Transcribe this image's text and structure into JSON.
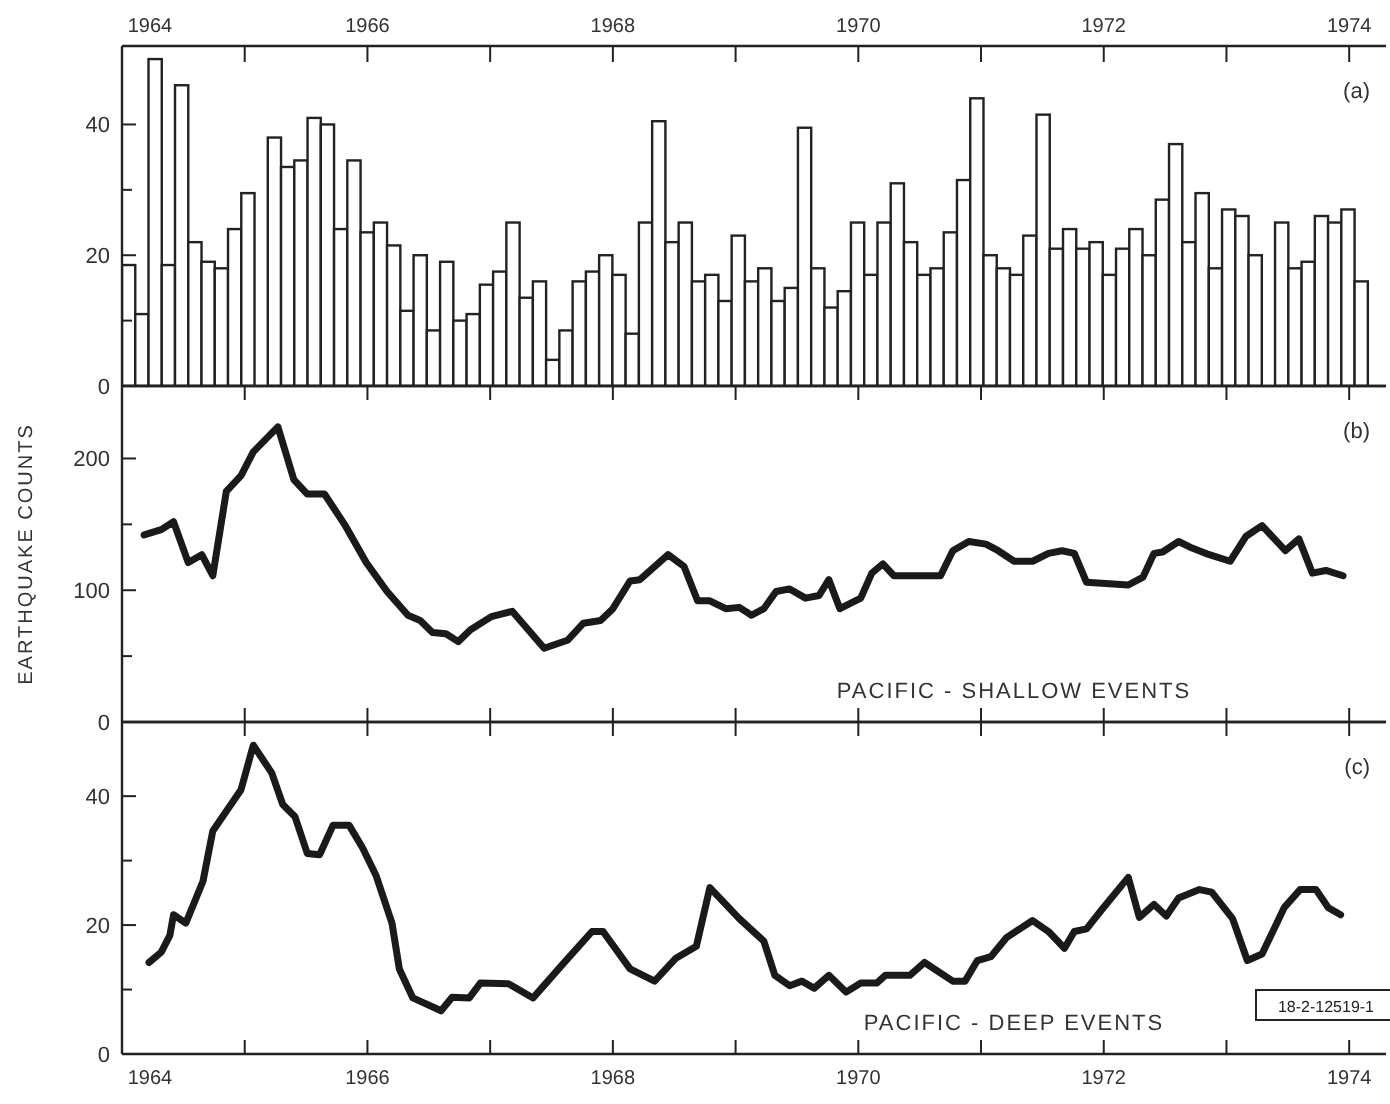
{
  "chart_data": [
    {
      "type": "histogram",
      "color": "#222222",
      "bins": [
        1964,
        1964.108,
        1964.216,
        1964.324,
        1964.432,
        1964.54,
        1964.648,
        1964.756,
        1964.864,
        1964.972,
        1965.08,
        1965.188,
        1965.296,
        1965.404,
        1965.512,
        1965.62,
        1965.728,
        1965.836,
        1965.944,
        1966.052,
        1966.16,
        1966.268,
        1966.376,
        1966.484,
        1966.592,
        1966.7,
        1966.808,
        1966.916,
        1967.024,
        1967.132,
        1967.24,
        1967.348,
        1967.456,
        1967.564,
        1967.672,
        1967.78,
        1967.888,
        1967.996,
        1968.104,
        1968.212,
        1968.32,
        1968.428,
        1968.536,
        1968.644,
        1968.752,
        1968.86,
        1968.968,
        1969.076,
        1969.184,
        1969.292,
        1969.4,
        1969.508,
        1969.616,
        1969.724,
        1969.832,
        1969.94,
        1970.048,
        1970.156,
        1970.264,
        1970.372,
        1970.48,
        1970.588,
        1970.696,
        1970.804,
        1970.912,
        1971.02,
        1971.128,
        1971.236,
        1971.344,
        1971.452,
        1971.56,
        1971.668,
        1971.776,
        1971.884,
        1971.992,
        1972.1,
        1972.208,
        1972.316,
        1972.424,
        1972.532,
        1972.64,
        1972.748,
        1972.856,
        1972.964,
        1973.072,
        1973.18,
        1973.288,
        1973.396,
        1973.504,
        1973.612,
        1973.72,
        1973.828,
        1973.936,
        1974.044,
        1974.152
      ],
      "values": [
        18.5,
        11,
        50,
        18.5,
        46,
        22,
        19,
        18,
        24,
        29.5,
        null,
        38,
        33.5,
        34.5,
        41,
        40,
        24,
        34.5,
        23.5,
        25,
        21.5,
        11.5,
        20,
        8.5,
        19,
        10,
        11,
        15.5,
        17.5,
        25,
        13.5,
        16,
        4,
        8.5,
        16,
        17.5,
        20,
        17,
        8,
        25,
        40.5,
        22,
        25,
        16,
        17,
        13,
        23,
        16,
        18,
        13,
        15,
        39.5,
        18,
        12,
        14.5,
        25,
        17,
        25,
        31,
        22,
        17,
        18,
        23.5,
        31.5,
        44,
        20,
        18,
        17,
        23,
        41.5,
        21,
        24,
        21,
        22,
        17,
        21,
        24,
        20,
        28.5,
        37,
        22,
        29.5,
        18,
        27,
        26,
        20,
        null,
        25,
        18,
        19,
        26,
        25,
        27,
        16
      ],
      "xlim": [
        1964,
        1974.3
      ],
      "x2lim": [
        1964,
        1974.3
      ],
      "x2ticks": [
        1964,
        {
          "value": 1965,
          "label": null
        },
        1966,
        {
          "value": 1967,
          "label": null
        },
        1968,
        {
          "value": 1969,
          "label": null
        },
        1970,
        {
          "value": 1971,
          "label": null
        },
        1972,
        {
          "value": 1973,
          "label": null
        },
        1974
      ],
      "ylim": [
        0,
        52
      ],
      "yticks": [
        0,
        {
          "value": 10,
          "label": null
        },
        20,
        {
          "value": 30,
          "label": null
        },
        40
      ],
      "annotations": [
        "(a)"
      ]
    },
    {
      "type": "line",
      "color": "#1a1a1a",
      "ylabel": "EARTHQUAKE COUNTS",
      "x": [
        1964.18,
        1964.32,
        1964.42,
        1964.54,
        1964.65,
        1964.74,
        1964.85,
        1964.97,
        1965.07,
        1965.27,
        1965.4,
        1965.51,
        1965.65,
        1965.82,
        1965.99,
        1966.16,
        1966.33,
        1966.43,
        1966.53,
        1966.64,
        1966.74,
        1966.84,
        1967.01,
        1967.18,
        1967.44,
        1967.63,
        1967.76,
        1967.9,
        1968,
        1968.14,
        1968.22,
        1968.45,
        1968.58,
        1968.69,
        1968.79,
        1968.92,
        1969.03,
        1969.13,
        1969.23,
        1969.33,
        1969.44,
        1969.57,
        1969.68,
        1969.76,
        1969.85,
        1970.02,
        1970.11,
        1970.2,
        1970.29,
        1970.67,
        1970.77,
        1970.9,
        1971.04,
        1971.14,
        1971.27,
        1971.42,
        1971.55,
        1971.66,
        1971.76,
        1971.86,
        1972.2,
        1972.32,
        1972.41,
        1972.48,
        1972.61,
        1972.72,
        1972.86,
        1973.03,
        1973.16,
        1973.29,
        1973.48,
        1973.59,
        1973.7,
        1973.81,
        1973.95
      ],
      "values": [
        142,
        146,
        152,
        121,
        127,
        111,
        175,
        187,
        205,
        224,
        184,
        173,
        173,
        149,
        121,
        99,
        81,
        77,
        68,
        67,
        61,
        70,
        80,
        84,
        56,
        62,
        75,
        77,
        86,
        107,
        108,
        127,
        118,
        92,
        92,
        86,
        87,
        81,
        86,
        99,
        101,
        94,
        96,
        108,
        86,
        94,
        113,
        120,
        111,
        111,
        130,
        137,
        135,
        130,
        122,
        122,
        128,
        130,
        128,
        106,
        104,
        110,
        128,
        129,
        137,
        132,
        127,
        122,
        141,
        149,
        130,
        139,
        113,
        115,
        111
      ],
      "xlim": [
        1964,
        1974.3
      ],
      "xticks": [
        {
          "value": 1964,
          "label": null
        },
        {
          "value": 1965,
          "label": null
        },
        {
          "value": 1966,
          "label": null
        },
        {
          "value": 1967,
          "label": null
        },
        {
          "value": 1968,
          "label": null
        },
        {
          "value": 1969,
          "label": null
        },
        {
          "value": 1970,
          "label": null
        },
        {
          "value": 1971,
          "label": null
        },
        {
          "value": 1972,
          "label": null
        },
        {
          "value": 1973,
          "label": null
        },
        {
          "value": 1974,
          "label": null
        }
      ],
      "ylim": [
        0,
        255
      ],
      "yticks": [
        0,
        {
          "value": 50,
          "label": null
        },
        100,
        {
          "value": 150,
          "label": null
        },
        200
      ],
      "tick_labels": "y",
      "annotations": [
        "(b)",
        "PACIFIC - SHALLOW EVENTS"
      ]
    },
    {
      "type": "line",
      "color": "#1a1a1a",
      "x": [
        1964.22,
        1964.32,
        1964.39,
        1964.42,
        1964.52,
        1964.66,
        1964.74,
        1964.97,
        1965.07,
        1965.22,
        1965.31,
        1965.41,
        1965.51,
        1965.61,
        1965.72,
        1965.85,
        1965.96,
        1966.07,
        1966.2,
        1966.26,
        1966.37,
        1966.6,
        1966.69,
        1966.83,
        1966.92,
        1967.15,
        1967.35,
        1967.59,
        1967.83,
        1967.92,
        1968.14,
        1968.34,
        1968.51,
        1968.68,
        1968.79,
        1969.03,
        1969.23,
        1969.32,
        1969.44,
        1969.54,
        1969.64,
        1969.76,
        1969.9,
        1970.02,
        1970.15,
        1970.22,
        1970.42,
        1970.54,
        1970.77,
        1970.87,
        1970.97,
        1971.08,
        1971.21,
        1971.42,
        1971.55,
        1971.68,
        1971.76,
        1971.86,
        1971.98,
        1972.2,
        1972.29,
        1972.41,
        1972.51,
        1972.61,
        1972.78,
        1972.88,
        1973.05,
        1973.17,
        1973.29,
        1973.47,
        1973.6,
        1973.73,
        1973.83,
        1973.93
      ],
      "values": [
        14.2,
        15.8,
        18.4,
        21.6,
        20.3,
        26.8,
        34.6,
        41,
        47.9,
        43.6,
        38.7,
        36.8,
        31.1,
        30.9,
        35.5,
        35.5,
        32,
        27.7,
        20.3,
        13.2,
        8.7,
        6.7,
        8.8,
        8.7,
        11,
        10.9,
        8.7,
        13.9,
        19,
        19,
        13.2,
        11.3,
        14.8,
        16.7,
        25.8,
        21,
        17.5,
        12.2,
        10.6,
        11.3,
        10.2,
        12.2,
        9.6,
        11,
        11,
        12.2,
        12.2,
        14.2,
        11.3,
        11.3,
        14.5,
        15.1,
        18.1,
        20.7,
        19,
        16.4,
        19,
        19.4,
        22.3,
        27.4,
        21.2,
        23.2,
        21.4,
        24.2,
        25.5,
        25.1,
        21,
        14.5,
        15.5,
        22.7,
        25.5,
        25.5,
        22.7,
        21.6
      ],
      "xlim": [
        1964,
        1974.3
      ],
      "xticks": [
        1964,
        {
          "value": 1965,
          "label": null
        },
        1966,
        {
          "value": 1967,
          "label": null
        },
        1968,
        {
          "value": 1969,
          "label": null
        },
        1970,
        {
          "value": 1971,
          "label": null
        },
        1972,
        {
          "value": 1973,
          "label": null
        },
        1974
      ],
      "ylim": [
        0,
        51.5
      ],
      "yticks": [
        0,
        {
          "value": 10,
          "label": null
        },
        20,
        {
          "value": 30,
          "label": null
        },
        40
      ],
      "annotations": [
        "(c)",
        "PACIFIC - DEEP EVENTS",
        "18-2-12519-1"
      ]
    }
  ]
}
